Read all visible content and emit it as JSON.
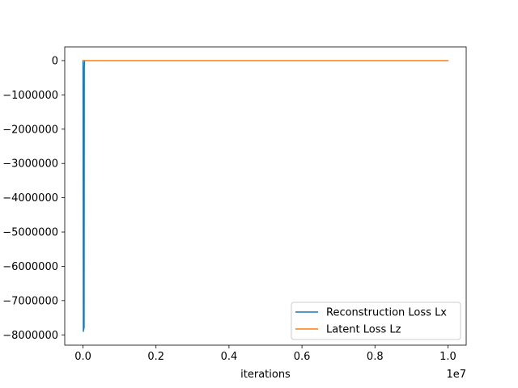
{
  "chart_data": {
    "type": "line",
    "xlabel": "iterations",
    "ylabel": "",
    "x_offset_label": "1e7",
    "xlim": [
      -0.05,
      1.05
    ],
    "ylim": [
      -8300000,
      400000
    ],
    "xticks": [
      0.0,
      0.2,
      0.4,
      0.6,
      0.8,
      1.0
    ],
    "xtick_labels": [
      "0.0",
      "0.2",
      "0.4",
      "0.6",
      "0.8",
      "1.0"
    ],
    "yticks": [
      0,
      -1000000,
      -2000000,
      -3000000,
      -4000000,
      -5000000,
      -6000000,
      -7000000,
      -8000000
    ],
    "ytick_labels": [
      "0",
      "−1000000",
      "−2000000",
      "−3000000",
      "−4000000",
      "−5000000",
      "−6000000",
      "−7000000",
      "−8000000"
    ],
    "grid": false,
    "legend_position": "lower right",
    "series": [
      {
        "name": "Reconstruction Loss Lx",
        "color": "#1f77b4",
        "x": [
          0.0,
          0.0005,
          0.001,
          0.0015,
          0.002,
          0.0025,
          0.003,
          0.0035,
          0.004,
          0.0045,
          0.005
        ],
        "y": [
          0,
          -3600000,
          -7900000,
          -3700000,
          -7850000,
          -3750000,
          -7800000,
          -200000,
          -50000,
          -10000,
          0
        ]
      },
      {
        "name": "Latent Loss Lz",
        "color": "#ff7f0e",
        "x": [
          0.001,
          0.25,
          0.5,
          0.75,
          1.0
        ],
        "y": [
          0,
          0,
          0,
          0,
          0
        ]
      }
    ]
  }
}
